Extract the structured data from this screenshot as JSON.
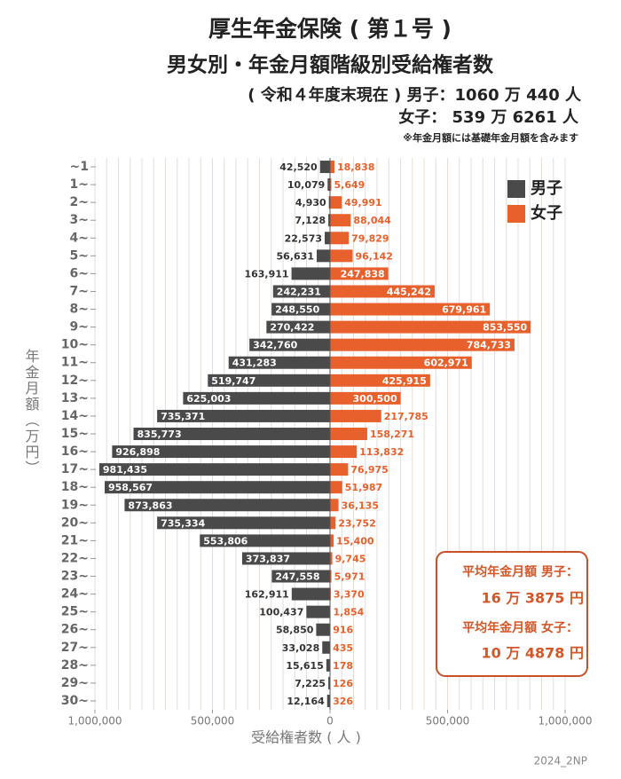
{
  "chart_data": {
    "type": "butterfly",
    "title": "厚生年金保険 ( 第１号 )",
    "subtitle": "男女別・年金月額階級別受給権者数",
    "totals": [
      "( 令和４年度末現在 )  男子：1060 万 440 人",
      "女子：  539 万 6261 人"
    ],
    "note": "※年金月額には基礎年金月額を含みます",
    "y_label": "年金月額（万円）",
    "x_label": "受給権者数 ( 人 )",
    "credit": "2024_2NP",
    "annotations": [
      "平均年金月額  男子：",
      "16 万 3875 円",
      "平均年金月額  女子：",
      "10 万 4878 円"
    ],
    "categories": [
      "~1",
      "1~",
      "2~",
      "3~",
      "4~",
      "5~",
      "6~",
      "7~",
      "8~",
      "9~",
      "10~",
      "11~",
      "12~",
      "13~",
      "14~",
      "15~",
      "16~",
      "17~",
      "18~",
      "19~",
      "20~",
      "21~",
      "22~",
      "23~",
      "24~",
      "25~",
      "26~",
      "27~",
      "28~",
      "29~",
      "30~"
    ],
    "series": [
      {
        "name": "男子",
        "color": "#4a4a4a",
        "side": "left",
        "values": [
          42520,
          10079,
          4930,
          7128,
          22573,
          56631,
          163911,
          242231,
          248550,
          270422,
          342760,
          431283,
          519747,
          625003,
          735371,
          835773,
          926898,
          981435,
          958567,
          873863,
          735334,
          553806,
          373837,
          247558,
          162911,
          100437,
          58850,
          33028,
          15615,
          7225,
          12164
        ],
        "value_labels": [
          "42,520",
          "10,079",
          "4,930",
          "7,128",
          "22,573",
          "56,631",
          "163,911",
          "242,231",
          "248,550",
          "270,422",
          "342,760",
          "431,283",
          "519,747",
          "625,003",
          "735,371",
          "835,773",
          "926,898",
          "981,435",
          "958,567",
          "873,863",
          "735,334",
          "553,806",
          "373,837",
          "247,558",
          "162,911",
          "100,437",
          "58,850",
          "33,028",
          "15,615",
          "7,225",
          "12,164"
        ]
      },
      {
        "name": "女子",
        "color": "#e8602c",
        "side": "right",
        "values": [
          18838,
          5649,
          49991,
          88044,
          79829,
          96142,
          247838,
          445242,
          679961,
          853550,
          784733,
          602971,
          425915,
          300500,
          217785,
          158271,
          113832,
          76975,
          51987,
          36135,
          23752,
          15400,
          9745,
          5971,
          3370,
          1854,
          916,
          435,
          178,
          126,
          326
        ],
        "value_labels": [
          "18,838",
          "5,649",
          "49,991",
          "88,044",
          "79,829",
          "96,142",
          "247,838",
          "445,242",
          "679,961",
          "853,550",
          "784,733",
          "602,971",
          "425,915",
          "300,500",
          "217,785",
          "158,271",
          "113,832",
          "76,975",
          "51,987",
          "36,135",
          "23,752",
          "15,400",
          "9,745",
          "5,971",
          "3,370",
          "1,854",
          "916",
          "435",
          "178",
          "126",
          "326"
        ]
      }
    ],
    "xlim": [
      0,
      1000000
    ],
    "xticks": [
      0,
      {
        "value": 500000,
        "label": "500,000"
      },
      {
        "value": 1000000,
        "label": "1,000,000"
      }
    ],
    "grid_step": 50000,
    "grid": true,
    "legend": "upper right"
  }
}
